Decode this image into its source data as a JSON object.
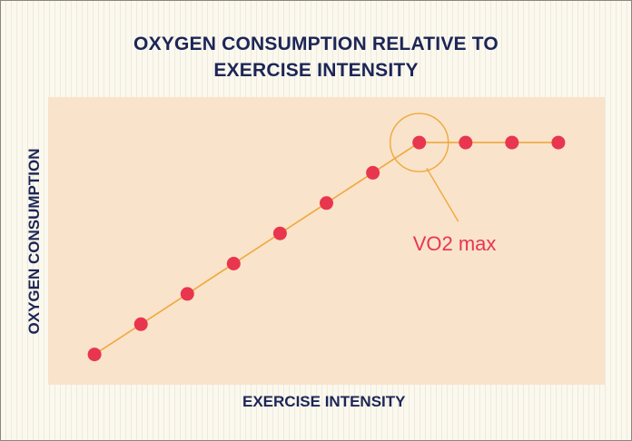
{
  "colors": {
    "background": "#fbf8ee",
    "plot_area": "#f9e3cb",
    "title_text": "#1c2656",
    "line": "#f0a83c",
    "point": "#e8364f",
    "annotation_text": "#e8364f",
    "annotation_circle": "#f0a83c"
  },
  "chart_data": {
    "type": "line",
    "title": "OXYGEN CONSUMPTION RELATIVE TO EXERCISE INTENSITY",
    "xlabel": "EXERCISE INTENSITY",
    "ylabel": "OXYGEN CONSUMPTION",
    "x": [
      1,
      2,
      3,
      4,
      5,
      6,
      7,
      8,
      9,
      10,
      11
    ],
    "series": [
      {
        "values": [
          1.0,
          2.0,
          3.0,
          4.0,
          5.0,
          6.0,
          7.0,
          8.0,
          8.0,
          8.0,
          8.0
        ]
      }
    ],
    "xlim": [
      0,
      12
    ],
    "ylim": [
      0,
      9.5
    ],
    "grid": false,
    "legend": "none",
    "annotations": [
      {
        "text": "VO2 max",
        "x": 8,
        "y": 8,
        "marker": "circle"
      }
    ]
  }
}
